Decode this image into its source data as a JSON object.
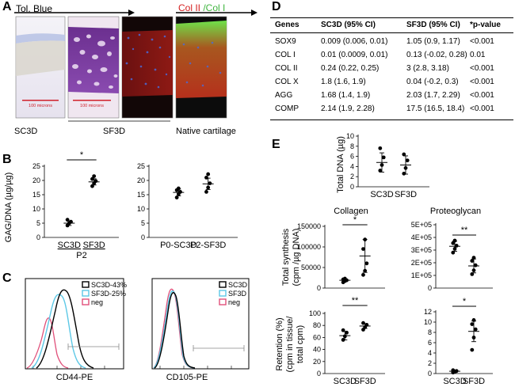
{
  "panel_a": {
    "letter": "A",
    "stain_label": "Tol. Blue",
    "stain_label_col2": "Col II",
    "stain_label_col1": " /Col I",
    "scale_bar_1": "100 microns",
    "scale_bar_2": "100 microns",
    "captions": [
      "SC3D",
      "SF3D",
      "Native cartilage"
    ],
    "colors": {
      "red_label": "#d42020",
      "green_label": "#3fb53f",
      "scale_bar": "#d0202a"
    }
  },
  "panel_b": {
    "letter": "B",
    "ylabel": "GAG/DNA (µg/µg)",
    "left_ticks": [
      "0",
      "5",
      "10",
      "15",
      "20",
      "25"
    ],
    "right_ticks": [
      "0",
      "5",
      "10",
      "15",
      "20",
      "25"
    ],
    "significance": "*",
    "left_xlabels": [
      "SC3D",
      "SF3D"
    ],
    "left_group": "P2",
    "right_xlabels": [
      "P0-SC3D",
      "P2-SF3D"
    ]
  },
  "panel_c": {
    "letter": "C",
    "left_legend": [
      "SC3D-43%",
      "SF3D-25%",
      "neg"
    ],
    "right_legend": [
      "SC3D",
      "SF3D",
      "neg"
    ],
    "left_xlabel": "CD44-PE",
    "right_xlabel": "CD105-PE",
    "colors": {
      "sc3d": "#000000",
      "sf3d": "#5cc8e6",
      "neg": "#e0507a"
    }
  },
  "panel_d": {
    "letter": "D",
    "headers": [
      "Genes",
      "SC3D (95%  CI)",
      "SF3D (95%  CI)",
      "*p-value"
    ],
    "rows": [
      [
        "SOX9",
        "0.009 (0.006, 0.01)",
        "1.05 (0.9, 1.17)",
        "<0.001"
      ],
      [
        "COL I",
        "0.01 (0.0009, 0.01)",
        "0.13 (-0.02, 0.28)",
        "0.01"
      ],
      [
        "COL II",
        "0.24 (0.22, 0.25)",
        "3 (2.8, 3.18)",
        "<0.001"
      ],
      [
        "COL X",
        "1.8 (1.6, 1.9)",
        "0.04 (-0.2, 0.3)",
        "<0.001"
      ],
      [
        "AGG",
        "1.68 (1.4, 1.9)",
        "2.03 (1.7, 2.29)",
        "<0.001"
      ],
      [
        "COMP",
        "2.14 (1.9, 2.28)",
        "17.5 (16.5, 18.4)",
        "<0.001"
      ]
    ]
  },
  "panel_e": {
    "letter": "E",
    "dna_ylabel": "Total DNA (µg)",
    "dna_ticks": [
      "0",
      "2",
      "4",
      "6",
      "8",
      "10"
    ],
    "xlabels": [
      "SC3D",
      "SF3D"
    ],
    "collagen_title": "Collagen",
    "proteoglycan_title": "Proteoglycan",
    "synth_ylabel_1": "Total synthesis",
    "synth_ylabel_2": "(cpm /µg DNA)",
    "collagen_ticks": [
      "0",
      "50000",
      "100000",
      "150000"
    ],
    "pg_ticks": [
      "0",
      "1E+05",
      "2E+05",
      "3E+05",
      "4E+05",
      "5E+05"
    ],
    "ret_ylabel_1": "Retention (%)",
    "ret_ylabel_2": "(cpm in tissue/",
    "ret_ylabel_3": "total cpm)",
    "ret_left_ticks": [
      "0",
      "20",
      "40",
      "60",
      "80",
      "100"
    ],
    "ret_right_ticks": [
      "0",
      "2",
      "4",
      "6",
      "8",
      "10",
      "12"
    ],
    "sig_single": "*",
    "sig_double": "**"
  },
  "chart_data": [
    {
      "type": "scatter",
      "panel": "B-left",
      "ylabel": "GAG/DNA (µg/µg)",
      "ylim": [
        0,
        25
      ],
      "categories": [
        "SC3D",
        "SF3D"
      ],
      "series": [
        {
          "values": [
            4.2,
            5.0,
            5.5,
            6.2
          ]
        },
        {
          "values": [
            18.0,
            19.0,
            19.8,
            20.5,
            21.5
          ]
        }
      ],
      "means": [
        5.0,
        19.5
      ],
      "errors": [
        0.8,
        1.1
      ]
    },
    {
      "type": "scatter",
      "panel": "B-right",
      "ylim": [
        0,
        25
      ],
      "categories": [
        "P0-SC3D",
        "P2-SF3D"
      ],
      "series": [
        {
          "values": [
            14.0,
            15.2,
            16.0,
            16.6,
            17.2
          ]
        },
        {
          "values": [
            16.0,
            17.5,
            19.0,
            21.0,
            22.2
          ]
        }
      ],
      "means": [
        15.8,
        18.8
      ],
      "errors": [
        1.2,
        2.0
      ]
    },
    {
      "type": "scatter",
      "panel": "E-dna",
      "ylabel": "Total DNA (µg)",
      "ylim": [
        0,
        10
      ],
      "categories": [
        "SC3D",
        "SF3D"
      ],
      "series": [
        {
          "values": [
            3.2,
            4.3,
            5.8,
            7.6
          ]
        },
        {
          "values": [
            2.6,
            3.7,
            5.2,
            6.4
          ]
        }
      ],
      "means": [
        4.8,
        4.3
      ],
      "errors": [
        1.9,
        1.8
      ]
    },
    {
      "type": "scatter",
      "panel": "E-collagen",
      "title": "Collagen",
      "ylim": [
        0,
        150000
      ],
      "categories": [
        "SC3D",
        "SF3D"
      ],
      "series": [
        {
          "values": [
            14000,
            17000,
            19000,
            21000,
            23000
          ]
        },
        {
          "values": [
            32000,
            42000,
            60000,
            95000,
            118000
          ]
        }
      ],
      "means": [
        19000,
        78000
      ],
      "errors": [
        3000,
        40000
      ]
    },
    {
      "type": "scatter",
      "panel": "E-proteoglycan",
      "title": "Proteoglycan",
      "ylim": [
        0,
        500000
      ],
      "categories": [
        "SC3D",
        "SF3D"
      ],
      "series": [
        {
          "values": [
            280000,
            310000,
            335000,
            355000,
            375000
          ]
        },
        {
          "values": [
            110000,
            140000,
            180000,
            215000,
            240000
          ]
        }
      ],
      "means": [
        330000,
        175000
      ],
      "errors": [
        40000,
        55000
      ]
    },
    {
      "type": "scatter",
      "panel": "E-retention-collagen",
      "ylim": [
        0,
        100
      ],
      "categories": [
        "SC3D",
        "SF3D"
      ],
      "series": [
        {
          "values": [
            56,
            62,
            68,
            72
          ]
        },
        {
          "values": [
            73,
            77,
            81,
            84
          ]
        }
      ],
      "means": [
        63,
        79
      ],
      "errors": [
        7,
        4
      ]
    },
    {
      "type": "scatter",
      "panel": "E-retention-proteoglycan",
      "ylim": [
        0,
        12
      ],
      "categories": [
        "SC3D",
        "SF3D"
      ],
      "series": [
        {
          "values": [
            0.2,
            0.35,
            0.5,
            0.65
          ]
        },
        {
          "values": [
            4.6,
            7.0,
            8.6,
            9.6,
            10.4
          ]
        }
      ],
      "means": [
        0.45,
        8.2
      ],
      "errors": [
        0.25,
        2.0
      ]
    }
  ]
}
